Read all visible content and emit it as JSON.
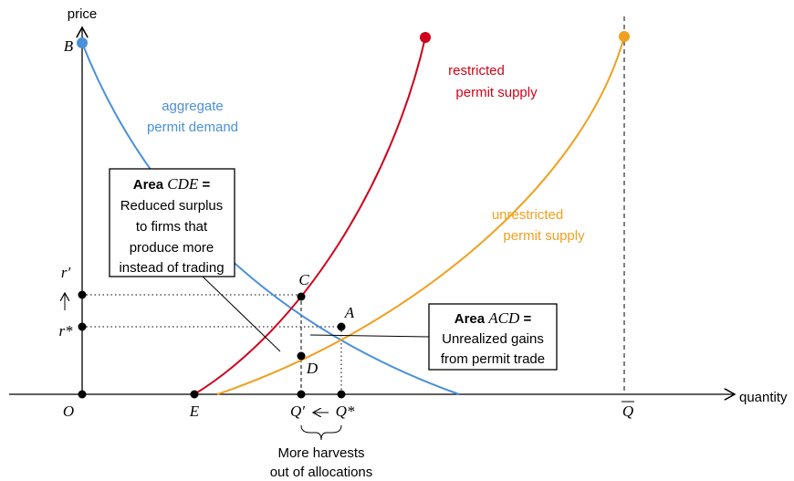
{
  "axes": {
    "y_label": "price",
    "x_label": "quantity"
  },
  "points": {
    "B": "B",
    "O": "O",
    "E": "E",
    "r_prime": "r′",
    "r_star": "r*",
    "Q_prime": "Q′",
    "Q_star": "Q*",
    "Q_bar": "Q",
    "C": "C",
    "A": "A",
    "D": "D"
  },
  "curves": [
    {
      "label_lines": [
        "aggregate",
        "permit demand"
      ]
    },
    {
      "label_lines": [
        "restricted",
        "permit supply"
      ]
    },
    {
      "label_lines": [
        "unrestricted",
        "permit supply"
      ]
    }
  ],
  "boxes": [
    {
      "title_bold": "Area",
      "title_italic": "CDE",
      "title_suffix": "=",
      "lines": [
        "Reduced surplus",
        "to firms that",
        "produce more",
        "instead of trading"
      ]
    },
    {
      "title_bold": "Area",
      "title_italic": "ACD",
      "title_suffix": "=",
      "lines": [
        "Unrealized gains",
        "from permit trade"
      ]
    }
  ],
  "caption_lines": [
    "More harvests",
    "out of allocations"
  ]
}
